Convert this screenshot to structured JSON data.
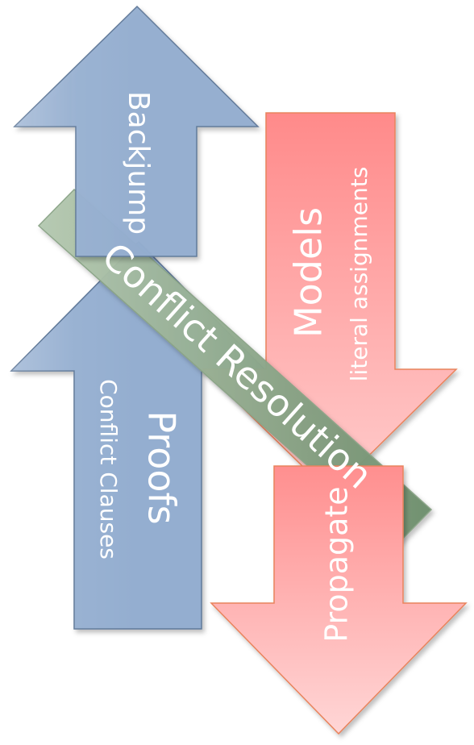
{
  "diagram": {
    "arrows": [
      {
        "id": "backjump",
        "direction": "up",
        "color": "blue",
        "title": "Backjump"
      },
      {
        "id": "proofs",
        "direction": "up",
        "color": "blue",
        "title": "Proofs",
        "subtitle": "Conflict Clauses"
      },
      {
        "id": "models",
        "direction": "down",
        "color": "red",
        "title": "Models",
        "subtitle": "literal assignments"
      },
      {
        "id": "propagate",
        "direction": "down",
        "color": "red",
        "title": "Propagate"
      }
    ],
    "band": {
      "color": "green",
      "title": "Conflict Resolution"
    }
  },
  "colors": {
    "blue_fill": "#94aed0",
    "blue_stroke": "#5f7898",
    "red_fill_top": "#ff8a8a",
    "red_fill_bottom": "#ffcccc",
    "red_stroke": "#e9835c",
    "green_fill_top": "#a9bfa5",
    "green_fill_bottom": "#6f8f6f"
  }
}
